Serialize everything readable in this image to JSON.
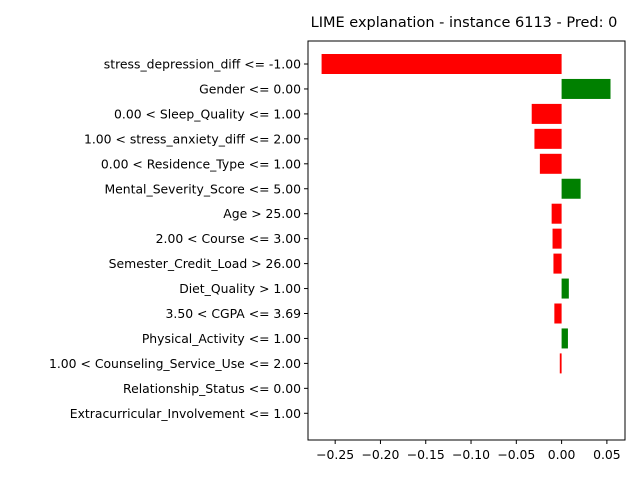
{
  "chart_data": {
    "type": "bar",
    "orientation": "horizontal",
    "title": "LIME explanation - instance 6113 - Pred: 0",
    "xlabel": "",
    "ylabel": "",
    "xlim": [
      -0.28,
      0.07
    ],
    "x_ticks": [
      -0.25,
      -0.2,
      -0.15,
      -0.1,
      -0.05,
      0.0,
      0.05
    ],
    "x_tick_labels": [
      "−0.25",
      "−0.20",
      "−0.15",
      "−0.10",
      "−0.05",
      "0.00",
      "0.05"
    ],
    "grid": false,
    "positive_color": "#008000",
    "negative_color": "#ff0000",
    "categories": [
      "stress_depression_diff <= -1.00",
      "Gender <= 0.00",
      "0.00 < Sleep_Quality <= 1.00",
      "1.00 < stress_anxiety_diff <= 2.00",
      "0.00 < Residence_Type <= 1.00",
      "Mental_Severity_Score <= 5.00",
      "Age > 25.00",
      "2.00 < Course <= 3.00",
      "Semester_Credit_Load > 26.00",
      "Diet_Quality > 1.00",
      "3.50 < CGPA <= 3.69",
      "Physical_Activity <= 1.00",
      "1.00 < Counseling_Service_Use <= 2.00",
      "Relationship_Status <= 0.00",
      "Extracurricular_Involvement <= 1.00"
    ],
    "values": [
      -0.265,
      0.054,
      -0.033,
      -0.03,
      -0.024,
      0.021,
      -0.011,
      -0.01,
      -0.009,
      0.008,
      -0.008,
      0.007,
      -0.002,
      0.0,
      0.0
    ]
  }
}
